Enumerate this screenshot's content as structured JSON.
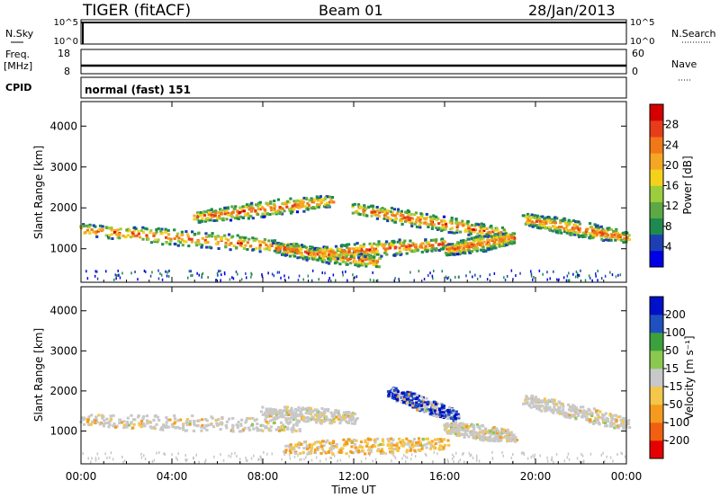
{
  "header": {
    "station": "TIGER (fitACF)",
    "beam": "Beam 01",
    "date": "28/Jan/2013"
  },
  "panels": {
    "nsky": {
      "label": "N.Sky",
      "right_label": "N.Search",
      "left_ticks": [
        "10^5",
        "10^0"
      ],
      "right_ticks": [
        "10^5",
        "10^0"
      ]
    },
    "freq": {
      "label_1": "Freq.",
      "label_2": "[MHz]",
      "right_label": "Nave",
      "left_ticks": [
        "18",
        "8"
      ],
      "right_ticks": [
        "60",
        "0"
      ]
    },
    "cpid": {
      "label": "CPID",
      "value": "normal (fast) 151"
    }
  },
  "colors": {
    "power": [
      "#0000e6",
      "#1e3fb4",
      "#1f8a4f",
      "#5ca844",
      "#9ccd3c",
      "#f4d21c",
      "#f5a623",
      "#f07818",
      "#e63c1a",
      "#d40000"
    ],
    "velocity": [
      "#e60000",
      "#f06010",
      "#f59a1e",
      "#f4c64a",
      "#c8c8c8",
      "#8cc850",
      "#3ca03c",
      "#2050c0",
      "#0010c8"
    ]
  },
  "chart_data": [
    {
      "type": "heatmap",
      "title": "",
      "xlabel": "",
      "ylabel": "Slant Range [km]",
      "x_ticks": [
        "00:00",
        "04:00",
        "08:00",
        "12:00",
        "16:00",
        "20:00",
        "00:00"
      ],
      "y_ticks": [
        "1000",
        "2000",
        "3000",
        "4000"
      ],
      "ylim": [
        180,
        4600
      ],
      "xlim_hours": [
        0,
        24
      ],
      "colorbar": {
        "label": "Power [dB]",
        "ticks": [
          "4",
          "8",
          "12",
          "16",
          "20",
          "24",
          "28"
        ],
        "range": [
          0,
          30
        ]
      },
      "echo_bands": [
        {
          "t_start": 0.0,
          "t_end": 9.5,
          "range_start": 1500,
          "range_end": 1050
        },
        {
          "t_start": 5.0,
          "t_end": 11.0,
          "range_start": 1800,
          "range_end": 2200
        },
        {
          "t_start": 8.5,
          "t_end": 13.0,
          "range_start": 1050,
          "range_end": 700
        },
        {
          "t_start": 10.0,
          "t_end": 16.0,
          "range_start": 900,
          "range_end": 1150
        },
        {
          "t_start": 12.0,
          "t_end": 18.5,
          "range_start": 2000,
          "range_end": 1400
        },
        {
          "t_start": 16.0,
          "t_end": 19.0,
          "range_start": 1000,
          "range_end": 1300
        },
        {
          "t_start": 19.5,
          "t_end": 24.0,
          "range_start": 1750,
          "range_end": 1300
        }
      ]
    },
    {
      "type": "heatmap",
      "title": "",
      "xlabel": "Time UT",
      "ylabel": "Slant Range [km]",
      "x_ticks": [
        "00:00",
        "04:00",
        "08:00",
        "12:00",
        "16:00",
        "20:00",
        "00:00"
      ],
      "y_ticks": [
        "1000",
        "2000",
        "3000",
        "4000"
      ],
      "ylim": [
        180,
        4600
      ],
      "xlim_hours": [
        0,
        24
      ],
      "colorbar": {
        "label": "Velocity [m s⁻¹]",
        "ticks": [
          "200",
          "100",
          "50",
          "15",
          "-15",
          "-50",
          "-100",
          "-200"
        ],
        "range": [
          -250,
          250
        ]
      },
      "echo_bands": [
        {
          "t_start": 0.0,
          "t_end": 9.5,
          "range_start": 1300,
          "range_end": 1150
        },
        {
          "t_start": 8.0,
          "t_end": 12.0,
          "range_start": 1500,
          "range_end": 1350
        },
        {
          "t_start": 9.0,
          "t_end": 16.0,
          "range_start": 600,
          "range_end": 700
        },
        {
          "t_start": 13.5,
          "t_end": 16.5,
          "range_start": 2000,
          "range_end": 1400
        },
        {
          "t_start": 16.0,
          "t_end": 19.0,
          "range_start": 1100,
          "range_end": 900
        },
        {
          "t_start": 19.5,
          "t_end": 24.0,
          "range_start": 1800,
          "range_end": 1200
        }
      ]
    }
  ]
}
